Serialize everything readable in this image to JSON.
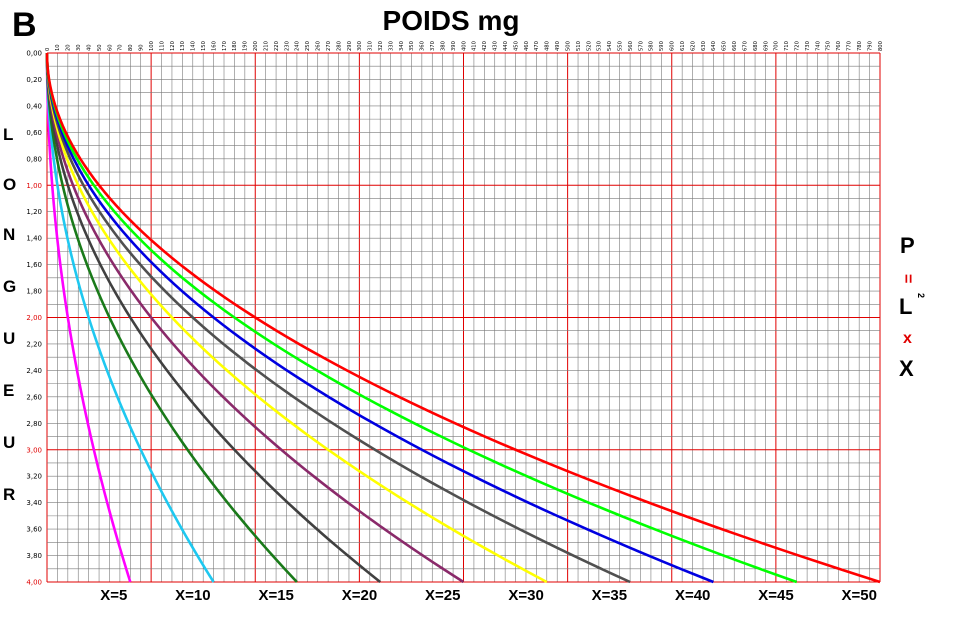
{
  "chart_data": {
    "type": "line",
    "panel_letter": "B",
    "title": "POIDS mg",
    "ylabel_letters": [
      "L",
      "O",
      "N",
      "G",
      "U",
      "E",
      "U",
      "R"
    ],
    "formula": {
      "p": "P",
      "equals": "=",
      "l": "L",
      "exp": "2",
      "times": "x",
      "x": "X"
    },
    "xlim": [
      0,
      800
    ],
    "ylim": [
      0,
      4
    ],
    "x_ticks": [
      0,
      10,
      20,
      30,
      40,
      50,
      60,
      70,
      80,
      90,
      100,
      110,
      120,
      130,
      140,
      150,
      160,
      170,
      180,
      190,
      200,
      210,
      220,
      230,
      240,
      250,
      260,
      270,
      280,
      290,
      300,
      310,
      320,
      330,
      340,
      350,
      360,
      370,
      380,
      390,
      400,
      410,
      420,
      430,
      440,
      450,
      460,
      470,
      480,
      490,
      500,
      510,
      520,
      530,
      540,
      550,
      560,
      570,
      580,
      590,
      600,
      610,
      620,
      630,
      640,
      650,
      660,
      670,
      680,
      690,
      700,
      710,
      720,
      730,
      740,
      750,
      760,
      770,
      780,
      790,
      800
    ],
    "y_ticks": [
      "0,00",
      "0,20",
      "0,40",
      "0,60",
      "0,80",
      "1,00",
      "1,20",
      "1,40",
      "1,60",
      "1,80",
      "2,00",
      "2,20",
      "2,40",
      "2,60",
      "2,80",
      "3,00",
      "3,20",
      "3,40",
      "3,60",
      "3,80",
      "4,00"
    ],
    "y_tick_values": [
      0,
      0.2,
      0.4,
      0.6,
      0.8,
      1,
      1.2,
      1.4,
      1.6,
      1.8,
      2,
      2.2,
      2.4,
      2.6,
      2.8,
      3,
      3.2,
      3.4,
      3.6,
      3.8,
      4
    ],
    "grid": true,
    "grid_colors": {
      "minor": "#7a7a7a",
      "major": "#e00000"
    },
    "series": [
      {
        "name": "X=5",
        "x_factor": 5,
        "color": "#ff00ff"
      },
      {
        "name": "X=10",
        "x_factor": 10,
        "color": "#1ec8f0"
      },
      {
        "name": "X=15",
        "x_factor": 15,
        "color": "#1a7a1a"
      },
      {
        "name": "X=20",
        "x_factor": 20,
        "color": "#404040"
      },
      {
        "name": "X=25",
        "x_factor": 25,
        "color": "#8a2a6a"
      },
      {
        "name": "X=30",
        "x_factor": 30,
        "color": "#ffff00"
      },
      {
        "name": "X=35",
        "x_factor": 35,
        "color": "#505050"
      },
      {
        "name": "X=40",
        "x_factor": 40,
        "color": "#0000e0"
      },
      {
        "name": "X=45",
        "x_factor": 45,
        "color": "#00ff00"
      },
      {
        "name": "X=50",
        "x_factor": 50,
        "color": "#ff0000"
      }
    ]
  }
}
